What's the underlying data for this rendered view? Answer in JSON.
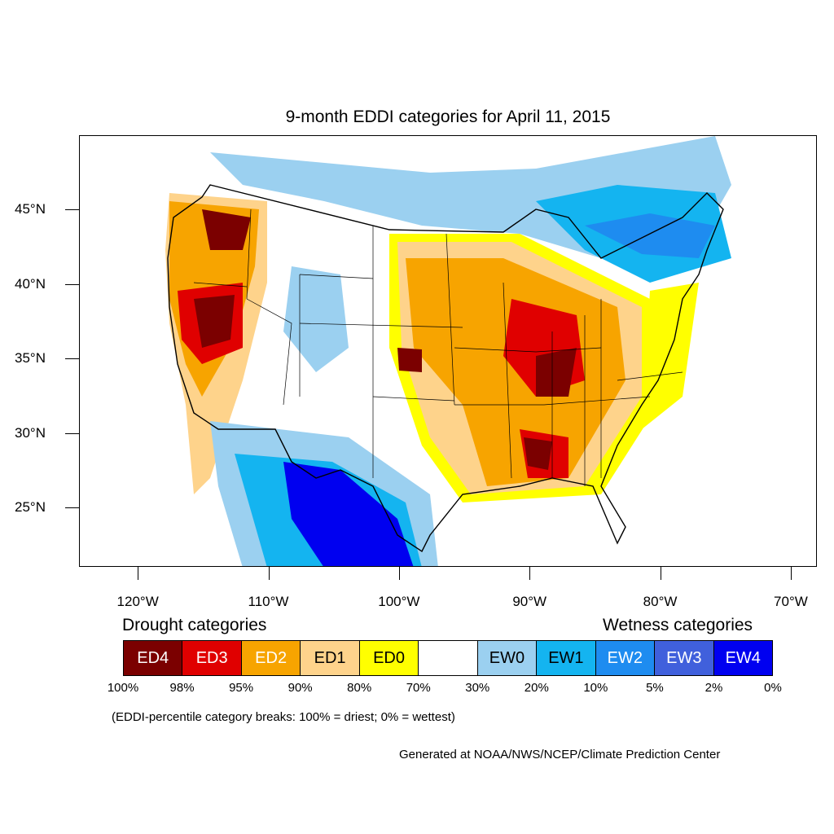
{
  "title": "9-month EDDI categories for April 11, 2015",
  "map": {
    "lon_range": [
      -124.5,
      -68
    ],
    "lat_range": [
      21,
      50
    ],
    "lat_labels": [
      "45°N",
      "40°N",
      "35°N",
      "30°N",
      "25°N"
    ],
    "lat_values": [
      45,
      40,
      35,
      30,
      25
    ],
    "lon_labels": [
      "120°W",
      "110°W",
      "100°W",
      "90°W",
      "80°W",
      "70°W"
    ],
    "lon_values": [
      -120,
      -110,
      -100,
      -90,
      -80,
      -70
    ]
  },
  "legend": {
    "drought_heading": "Drought categories",
    "wetness_heading": "Wetness categories",
    "categories": [
      {
        "label": "ED4",
        "color": "#7b0000",
        "text_color": "#ffffff"
      },
      {
        "label": "ED3",
        "color": "#e00000",
        "text_color": "#ffffff"
      },
      {
        "label": "ED2",
        "color": "#f7a400",
        "text_color": "#ffffff"
      },
      {
        "label": "ED1",
        "color": "#fed38b",
        "text_color": "#000000"
      },
      {
        "label": "ED0",
        "color": "#ffff00",
        "text_color": "#000000"
      },
      {
        "label": "",
        "color": "#ffffff",
        "text_color": "#000000"
      },
      {
        "label": "EW0",
        "color": "#9bd0f0",
        "text_color": "#000000"
      },
      {
        "label": "EW1",
        "color": "#14b4f0",
        "text_color": "#000000"
      },
      {
        "label": "EW2",
        "color": "#1e8cf0",
        "text_color": "#ffffff"
      },
      {
        "label": "EW3",
        "color": "#4060dc",
        "text_color": "#ffffff"
      },
      {
        "label": "EW4",
        "color": "#0000f0",
        "text_color": "#ffffff"
      }
    ],
    "breaks": [
      "100%",
      "98%",
      "95%",
      "90%",
      "80%",
      "70%",
      "30%",
      "20%",
      "10%",
      "5%",
      "2%",
      "0%"
    ]
  },
  "note": "(EDDI-percentile category breaks: 100% = driest; 0% = wettest)",
  "credit": "Generated at NOAA/NWS/NCEP/Climate Prediction Center"
}
